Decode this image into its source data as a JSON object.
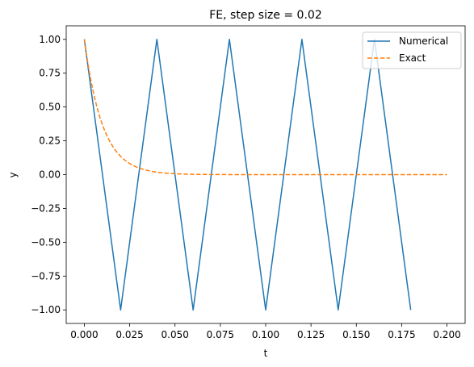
{
  "chart_data": {
    "type": "line",
    "title": "FE, step size = 0.02",
    "xlabel": "t",
    "ylabel": "y",
    "xlim": [
      -0.01,
      0.21
    ],
    "ylim": [
      -1.1,
      1.1
    ],
    "xticks": [
      0.0,
      0.025,
      0.05,
      0.075,
      0.1,
      0.125,
      0.15,
      0.175,
      0.2
    ],
    "xtick_labels": [
      "0.000",
      "0.025",
      "0.050",
      "0.075",
      "0.100",
      "0.125",
      "0.150",
      "0.175",
      "0.200"
    ],
    "yticks": [
      -1.0,
      -0.75,
      -0.5,
      -0.25,
      0.0,
      0.25,
      0.5,
      0.75,
      1.0
    ],
    "ytick_labels": [
      "−1.00",
      "−0.75",
      "−0.50",
      "−0.25",
      "0.00",
      "0.25",
      "0.50",
      "0.75",
      "1.00"
    ],
    "grid": false,
    "legend_position": "top-right",
    "series": [
      {
        "name": "Numerical",
        "color": "#1f77b4",
        "style": "solid",
        "x": [
          0.0,
          0.02,
          0.04,
          0.06,
          0.08,
          0.1,
          0.12,
          0.14,
          0.16,
          0.18
        ],
        "y": [
          1,
          -1,
          1,
          -1,
          1,
          -1,
          1,
          -1,
          1,
          -1
        ]
      },
      {
        "name": "Exact",
        "color": "#ff7f0e",
        "style": "dashed",
        "function": "exp(-100 t)",
        "x_range": [
          0.0,
          0.2
        ]
      }
    ]
  }
}
